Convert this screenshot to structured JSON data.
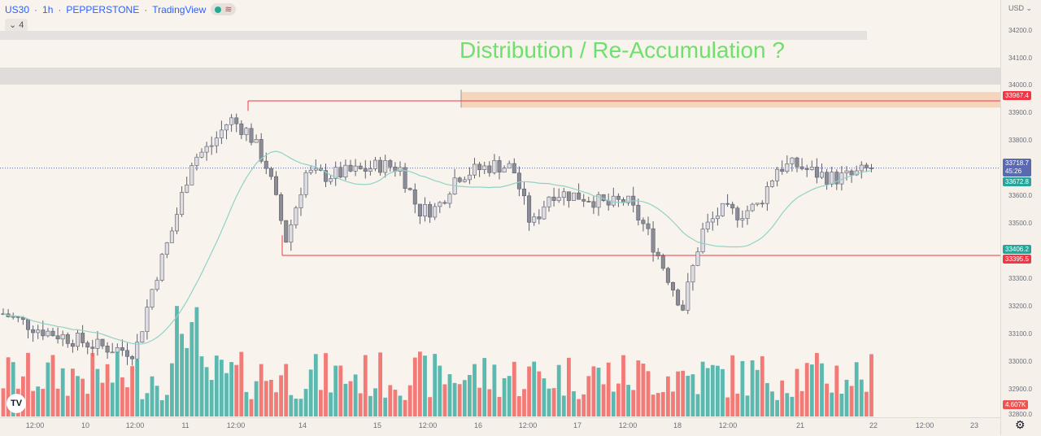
{
  "header": {
    "symbol": "US30",
    "interval": "1h",
    "broker": "PEPPERSTONE",
    "platform": "TradingView",
    "indicator_count": "4"
  },
  "annotation": "Distribution / Re-Accumulation ?",
  "price_axis": {
    "currency": "USD",
    "labels": [
      "34200.0",
      "34100.0",
      "34000.0",
      "33900.0",
      "33800.0",
      "33700.0",
      "33600.0",
      "33500.0",
      "33400.0",
      "33300.0",
      "33200.0",
      "33100.0",
      "33000.0",
      "32900.0",
      "32800.0"
    ],
    "tags": {
      "zone_top": "33967.4",
      "last_price": "33718.7",
      "countdown": "45:26",
      "ma_value": "33672.8",
      "ma_low": "33406.2",
      "zone_bottom": "33395.5",
      "volume": "4.607K"
    }
  },
  "time_axis": [
    "12:00",
    "10",
    "12:00",
    "11",
    "12:00",
    "14",
    "15",
    "12:00",
    "16",
    "12:00",
    "17",
    "12:00",
    "18",
    "12:00",
    "21",
    "22",
    "12:00",
    "23"
  ],
  "colors": {
    "up": "#26a69a",
    "down": "#ef5350",
    "candle": "#b8b8c0",
    "zone": "#f4c9a8",
    "range": "#f23645",
    "ma": "#8fd3c6",
    "last_price": "#5b6ab0",
    "annotation": "#6fe06c"
  },
  "chart_data": {
    "type": "candlestick",
    "x": [
      "12:00",
      "10",
      "12:00",
      "11",
      "12:00",
      "14",
      "15",
      "12:00",
      "16",
      "12:00",
      "17",
      "12:00",
      "18",
      "12:00",
      "21",
      "22",
      "12:00",
      "23"
    ],
    "ylim": [
      32800,
      34250
    ],
    "close_approx": [
      33180,
      33150,
      33120,
      33100,
      33080,
      33060,
      33050,
      33040,
      33300,
      33500,
      33750,
      33800,
      33900,
      33850,
      33720,
      33450,
      33700,
      33690,
      33700,
      33710,
      33730,
      33720,
      33560,
      33570,
      33690,
      33710,
      33730,
      33720,
      33500,
      33630,
      33620,
      33610,
      33580,
      33600,
      33500,
      33350,
      33200,
      33480,
      33560,
      33550,
      33580,
      33720,
      33730,
      33700,
      33680,
      33690,
      33720
    ],
    "levels": {
      "zone_top": 33967.4,
      "zone_bottom": 33395.5,
      "last_price": 33718.7,
      "ma": 33672.8,
      "ma_low": 33406.2
    },
    "annotation": "Distribution / Re-Accumulation ?"
  }
}
